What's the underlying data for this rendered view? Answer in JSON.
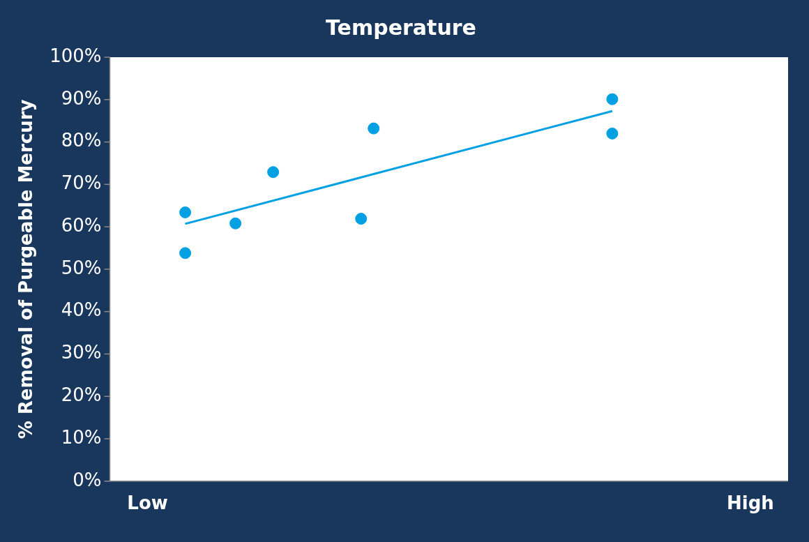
{
  "chart_data": {
    "type": "scatter",
    "title": "Temperature",
    "ylabel": "% Removal of Purgeable Mercury",
    "categories": [
      "Low",
      null,
      null,
      null,
      null,
      null,
      null,
      null,
      null,
      null,
      null,
      null,
      null,
      null,
      null,
      null,
      null,
      null,
      null,
      null,
      null,
      null,
      null,
      null,
      null,
      null,
      null,
      null,
      null,
      null,
      null,
      null,
      null,
      null,
      null,
      null,
      null,
      null,
      null,
      null,
      null,
      null,
      null,
      null,
      null,
      null,
      null,
      null,
      "High"
    ],
    "series": [
      {
        "color": "#00a0e3",
        "values": [
          null,
          null,
          null,
          63.4,
          null,
          null,
          null,
          60.8,
          null,
          null,
          72.9,
          null,
          null,
          null,
          null,
          null,
          null,
          61.9,
          83.2,
          null,
          null,
          null,
          null,
          null,
          null,
          null,
          null,
          null,
          null,
          null,
          null,
          null,
          null,
          null,
          null,
          null,
          null,
          90.1,
          null,
          null,
          null,
          null,
          null,
          null,
          null,
          null,
          null,
          null,
          null
        ]
      },
      {
        "color": "#00a0e3",
        "values": [
          null,
          null,
          null,
          53.8,
          null,
          null,
          null,
          null,
          null,
          null,
          null,
          null,
          null,
          null,
          null,
          null,
          null,
          null,
          null,
          null,
          null,
          null,
          null,
          null,
          null,
          null,
          null,
          null,
          null,
          null,
          null,
          null,
          null,
          null,
          null,
          null,
          null,
          82.0,
          null,
          null,
          null,
          null,
          null,
          null,
          null,
          null,
          null,
          null,
          null
        ]
      },
      {
        "type": "line",
        "marker": "none",
        "color": "#00a0e3",
        "values": [
          null,
          null,
          null,
          60.7,
          null,
          null,
          null,
          null,
          null,
          null,
          null,
          null,
          null,
          null,
          null,
          null,
          null,
          null,
          null,
          null,
          null,
          null,
          null,
          null,
          null,
          null,
          null,
          null,
          null,
          null,
          null,
          null,
          null,
          null,
          null,
          null,
          null,
          87.3,
          null,
          null,
          null,
          null,
          null,
          null,
          null,
          null,
          null,
          null,
          null
        ]
      }
    ],
    "ylim": [
      0,
      100
    ],
    "yticks": [
      {
        "value": 0,
        "label": "0%"
      },
      {
        "value": 10,
        "label": "10%"
      },
      {
        "value": 20,
        "label": "20%"
      },
      {
        "value": 30,
        "label": "30%"
      },
      {
        "value": 40,
        "label": "40%"
      },
      {
        "value": 50,
        "label": "50%"
      },
      {
        "value": 60,
        "label": "60%"
      },
      {
        "value": 70,
        "label": "70%"
      },
      {
        "value": 80,
        "label": "80%"
      },
      {
        "value": 90,
        "label": "90%"
      },
      {
        "value": 100,
        "label": "100%"
      }
    ],
    "grid": false,
    "legend": false,
    "marker": "circle"
  }
}
